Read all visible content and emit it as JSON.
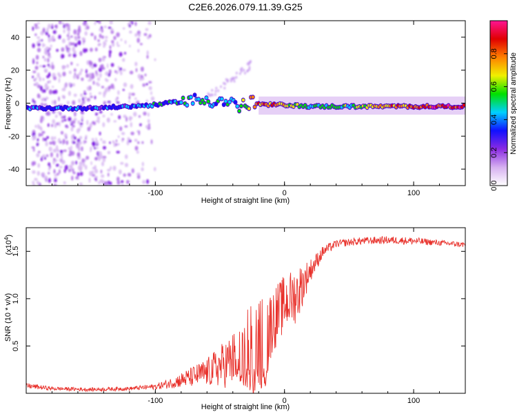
{
  "title": "C2E6.2026.079.11.39.G25",
  "chart_data": [
    {
      "type": "heatmap",
      "xlabel": "Height of straight line (km)",
      "ylabel": "Frequency (Hz)",
      "xlim": [
        -200,
        140
      ],
      "ylim": [
        -50,
        50
      ],
      "xticks": [
        -100,
        0,
        100
      ],
      "xtick_labels": [
        "-100",
        "0",
        "100"
      ],
      "yticks": [
        -40,
        -20,
        0,
        20,
        40
      ],
      "ytick_labels": [
        "-40",
        "-20",
        "0",
        "20",
        "40"
      ],
      "colorbar": {
        "label": "Normalized spectral amplitude",
        "range": [
          0,
          1
        ],
        "ticks": [
          0.0,
          0.2,
          0.4,
          0.6,
          0.8
        ],
        "tick_labels": [
          "0.0",
          "0.2",
          "0.4",
          "0.6",
          "0.8"
        ],
        "stops": [
          "#ffffff",
          "#d6b0f0",
          "#8a2be2",
          "#1010ff",
          "#00d0ff",
          "#00e000",
          "#f0f000",
          "#ff8000",
          "#e00000",
          "#ff1493"
        ]
      },
      "ridge": {
        "x": [
          -200,
          -150,
          -120,
          -100,
          -80,
          -60,
          -45,
          -35,
          -25,
          -15,
          0,
          20,
          50,
          100,
          140
        ],
        "freq": [
          -3,
          -3,
          -2,
          -1,
          1,
          2,
          1,
          -2,
          0,
          -1,
          -1,
          -2,
          -2,
          -2,
          -2
        ],
        "amplitude": [
          0.35,
          0.35,
          0.35,
          0.45,
          0.45,
          0.5,
          0.45,
          0.45,
          0.85,
          0.8,
          0.7,
          0.5,
          0.55,
          0.85,
          0.9
        ]
      }
    },
    {
      "type": "line",
      "xlabel": "Height of straight line (km)",
      "ylabel": "SNR (10 * v/v)",
      "y_scale_label": "(x10",
      "y_scale_exponent": "4",
      "y_scale_close": ")",
      "xlim": [
        -200,
        140
      ],
      "ylim": [
        0,
        1.75
      ],
      "xticks": [
        -100,
        0,
        100
      ],
      "xtick_labels": [
        "-100",
        "0",
        "100"
      ],
      "yticks": [
        0.5,
        1.0,
        1.5
      ],
      "ytick_labels": [
        "0.5",
        "1.0",
        "1.5"
      ],
      "series": [
        {
          "name": "SNR",
          "color": "#e8302a",
          "envelope_x": [
            -200,
            -180,
            -150,
            -120,
            -100,
            -90,
            -80,
            -60,
            -40,
            -30,
            -20,
            -15,
            -10,
            0,
            10,
            20,
            30,
            40,
            60,
            80,
            100,
            120,
            140
          ],
          "envelope_y": [
            0.08,
            0.05,
            0.04,
            0.05,
            0.07,
            0.1,
            0.14,
            0.22,
            0.35,
            0.45,
            0.5,
            0.55,
            0.75,
            0.95,
            1.05,
            1.3,
            1.5,
            1.58,
            1.61,
            1.62,
            1.61,
            1.59,
            1.57
          ],
          "spread_y": [
            0.03,
            0.02,
            0.02,
            0.02,
            0.03,
            0.05,
            0.08,
            0.15,
            0.3,
            0.45,
            0.55,
            0.5,
            0.35,
            0.3,
            0.3,
            0.12,
            0.06,
            0.04,
            0.04,
            0.04,
            0.04,
            0.03,
            0.03
          ]
        }
      ]
    }
  ]
}
